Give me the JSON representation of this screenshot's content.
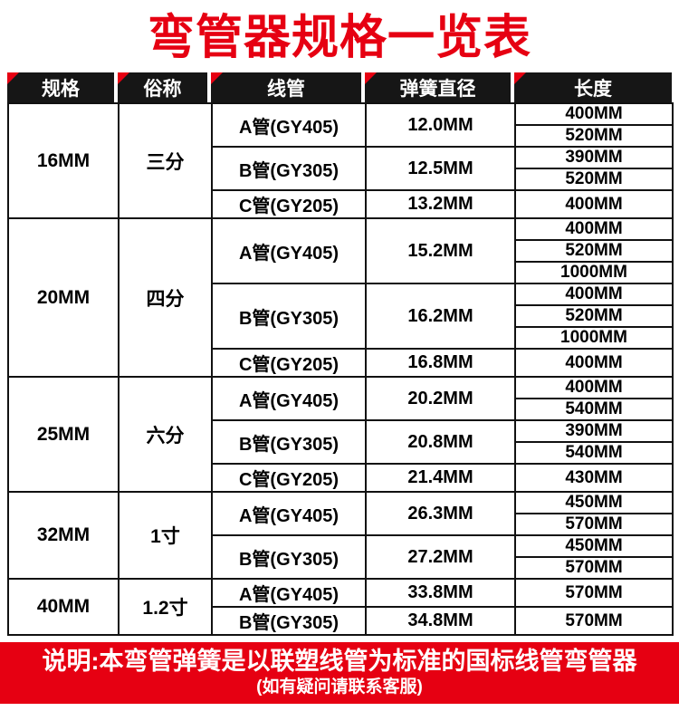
{
  "title": "弯管器规格一览表",
  "colors": {
    "accent": "#e60012",
    "header_bg": "#161616",
    "border": "#111111",
    "text": "#000000"
  },
  "table": {
    "headers": [
      "规格",
      "俗称",
      "线管",
      "弹簧直径",
      "长度"
    ],
    "groups": [
      {
        "spec": "16MM",
        "alias": "三分",
        "pipes": [
          {
            "pipe": "A管(GY405)",
            "diameter": "12.0MM",
            "lengths": [
              "400MM",
              "520MM"
            ]
          },
          {
            "pipe": "B管(GY305)",
            "diameter": "12.5MM",
            "lengths": [
              "390MM",
              "520MM"
            ]
          },
          {
            "pipe": "C管(GY205)",
            "diameter": "13.2MM",
            "lengths": [
              "400MM"
            ]
          }
        ]
      },
      {
        "spec": "20MM",
        "alias": "四分",
        "pipes": [
          {
            "pipe": "A管(GY405)",
            "diameter": "15.2MM",
            "lengths": [
              "400MM",
              "520MM",
              "1000MM"
            ]
          },
          {
            "pipe": "B管(GY305)",
            "diameter": "16.2MM",
            "lengths": [
              "400MM",
              "520MM",
              "1000MM"
            ]
          },
          {
            "pipe": "C管(GY205)",
            "diameter": "16.8MM",
            "lengths": [
              "400MM"
            ]
          }
        ]
      },
      {
        "spec": "25MM",
        "alias": "六分",
        "pipes": [
          {
            "pipe": "A管(GY405)",
            "diameter": "20.2MM",
            "lengths": [
              "400MM",
              "540MM"
            ]
          },
          {
            "pipe": "B管(GY305)",
            "diameter": "20.8MM",
            "lengths": [
              "390MM",
              "540MM"
            ]
          },
          {
            "pipe": "C管(GY205)",
            "diameter": "21.4MM",
            "lengths": [
              "430MM"
            ]
          }
        ]
      },
      {
        "spec": "32MM",
        "alias": "1寸",
        "pipes": [
          {
            "pipe": "A管(GY405)",
            "diameter": "26.3MM",
            "lengths": [
              "450MM",
              "570MM"
            ]
          },
          {
            "pipe": "B管(GY305)",
            "diameter": "27.2MM",
            "lengths": [
              "450MM",
              "570MM"
            ]
          }
        ]
      },
      {
        "spec": "40MM",
        "alias": "1.2寸",
        "pipes": [
          {
            "pipe": "A管(GY405)",
            "diameter": "33.8MM",
            "lengths": [
              "570MM"
            ]
          },
          {
            "pipe": "B管(GY305)",
            "diameter": "34.8MM",
            "lengths": [
              "570MM"
            ]
          }
        ]
      }
    ]
  },
  "footer": {
    "line1": "说明:本弯管弹簧是以联塑线管为标准的国标线管弯管器",
    "line2": "(如有疑问请联系客服)"
  }
}
